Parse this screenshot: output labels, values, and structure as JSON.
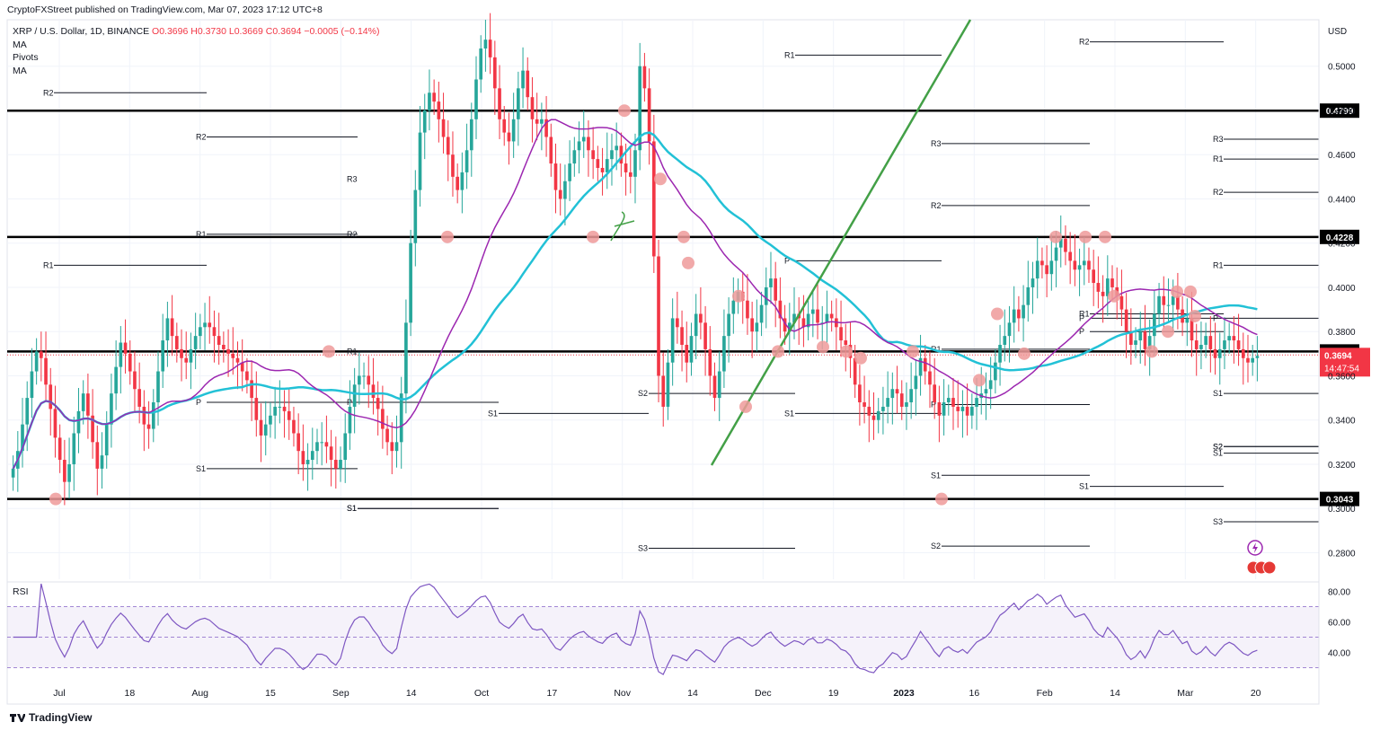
{
  "header": {
    "text": "CryptoFXStreet published on TradingView.com, Mar 07, 2023 17:12 UTC+8"
  },
  "legend": {
    "symbol": "XRP / U.S. Dollar, 1D, BINANCE",
    "open": "O0.3696",
    "high": "H0.3730",
    "low": "L0.3669",
    "close": "C0.3694",
    "change": "−0.0005 (−0.14%)",
    "indicators": [
      "MA",
      "Pivots",
      "MA"
    ]
  },
  "footer": {
    "brand": "TradingView"
  },
  "colors": {
    "up": "#26a69a",
    "down": "#f23645",
    "ma_fast": "#22c1d6",
    "ma_slow": "#9c27b0",
    "trend": "#43a047",
    "rsi": "#7e57c2",
    "markers": "#ef9a9a"
  },
  "chart_data": {
    "type": "candlestick",
    "title": "XRP / U.S. Dollar, 1D, BINANCE",
    "currency_label": "USD",
    "ylim": [
      0.268,
      0.521
    ],
    "y_ticks": [
      "0.5000",
      "0.4800",
      "0.4600",
      "0.4400",
      "0.4200",
      "0.4000",
      "0.3800",
      "0.3600",
      "0.3400",
      "0.3200",
      "0.3000",
      "0.2800"
    ],
    "x_ticks": [
      "Jul",
      "18",
      "Aug",
      "15",
      "Sep",
      "14",
      "Oct",
      "17",
      "Nov",
      "14",
      "Dec",
      "19",
      "2023",
      "16",
      "Feb",
      "14",
      "Mar",
      "20"
    ],
    "horizontal_levels": [
      0.4799,
      0.4228,
      0.371,
      0.3043
    ],
    "level_labels": [
      "0.4799",
      "0.4228",
      "0.3710",
      "0.3043"
    ],
    "last_price": "0.3694",
    "countdown": "14:47:54",
    "pivot_labels": [
      "R2",
      "R2",
      "R3",
      "R1",
      "R2",
      "R1",
      "R1",
      "P",
      "P",
      "S1",
      "S1",
      "S1",
      "S1",
      "R1",
      "P",
      "S1",
      "S2",
      "S3",
      "R1",
      "P",
      "S1",
      "R3",
      "R2",
      "R1",
      "P",
      "S1",
      "S2",
      "R2",
      "R1",
      "P",
      "S1",
      "S2",
      "R3",
      "R2",
      "R1",
      "P",
      "S1",
      "S2",
      "S3"
    ],
    "series": [
      {
        "name": "XRP close (approx.)",
        "values": [
          0.318,
          0.326,
          0.338,
          0.35,
          0.362,
          0.371,
          0.368,
          0.356,
          0.345,
          0.332,
          0.322,
          0.312,
          0.32,
          0.334,
          0.344,
          0.352,
          0.342,
          0.33,
          0.318,
          0.324,
          0.338,
          0.352,
          0.364,
          0.375,
          0.37,
          0.362,
          0.354,
          0.346,
          0.338,
          0.336,
          0.348,
          0.362,
          0.376,
          0.386,
          0.378,
          0.372,
          0.368,
          0.366,
          0.372,
          0.378,
          0.382,
          0.384,
          0.382,
          0.378,
          0.374,
          0.372,
          0.37,
          0.368,
          0.366,
          0.362,
          0.358,
          0.35,
          0.34,
          0.333,
          0.338,
          0.342,
          0.346,
          0.346,
          0.344,
          0.34,
          0.334,
          0.326,
          0.32,
          0.322,
          0.326,
          0.33,
          0.33,
          0.328,
          0.322,
          0.318,
          0.322,
          0.334,
          0.346,
          0.356,
          0.36,
          0.36,
          0.356,
          0.35,
          0.345,
          0.336,
          0.33,
          0.326,
          0.33,
          0.352,
          0.384,
          0.42,
          0.444,
          0.47,
          0.48,
          0.488,
          0.484,
          0.476,
          0.468,
          0.46,
          0.45,
          0.444,
          0.452,
          0.462,
          0.476,
          0.494,
          0.508,
          0.512,
          0.504,
          0.49,
          0.476,
          0.47,
          0.466,
          0.476,
          0.49,
          0.498,
          0.486,
          0.476,
          0.474,
          0.476,
          0.468,
          0.456,
          0.444,
          0.44,
          0.448,
          0.456,
          0.462,
          0.466,
          0.468,
          0.462,
          0.458,
          0.454,
          0.452,
          0.458,
          0.462,
          0.464,
          0.456,
          0.452,
          0.45,
          0.462,
          0.5,
          0.49,
          0.466,
          0.414,
          0.36,
          0.346,
          0.366,
          0.386,
          0.382,
          0.374,
          0.366,
          0.378,
          0.388,
          0.384,
          0.372,
          0.36,
          0.35,
          0.362,
          0.378,
          0.388,
          0.394,
          0.398,
          0.394,
          0.386,
          0.38,
          0.384,
          0.392,
          0.4,
          0.404,
          0.394,
          0.386,
          0.38,
          0.384,
          0.388,
          0.386,
          0.382,
          0.388,
          0.39,
          0.384,
          0.384,
          0.388,
          0.386,
          0.382,
          0.376,
          0.374,
          0.368,
          0.356,
          0.348,
          0.346,
          0.342,
          0.34,
          0.344,
          0.346,
          0.35,
          0.354,
          0.352,
          0.346,
          0.348,
          0.354,
          0.36,
          0.368,
          0.362,
          0.356,
          0.348,
          0.342,
          0.348,
          0.35,
          0.346,
          0.344,
          0.346,
          0.342,
          0.346,
          0.35,
          0.352,
          0.354,
          0.358,
          0.366,
          0.374,
          0.378,
          0.384,
          0.39,
          0.386,
          0.392,
          0.4,
          0.404,
          0.412,
          0.41,
          0.406,
          0.412,
          0.418,
          0.422,
          0.416,
          0.412,
          0.408,
          0.41,
          0.412,
          0.408,
          0.402,
          0.398,
          0.396,
          0.404,
          0.4,
          0.396,
          0.39,
          0.38,
          0.374,
          0.376,
          0.38,
          0.372,
          0.378,
          0.388,
          0.396,
          0.392,
          0.392,
          0.396,
          0.39,
          0.384,
          0.386,
          0.376,
          0.372,
          0.374,
          0.378,
          0.372,
          0.368,
          0.372,
          0.376,
          0.378,
          0.376,
          0.372,
          0.368,
          0.366,
          0.368,
          0.369
        ]
      }
    ],
    "indicators": {
      "rsi": {
        "label": "RSI",
        "ylim": [
          25,
          85
        ],
        "ticks": [
          "80.00",
          "60.00",
          "40.00"
        ],
        "bands": [
          70,
          50,
          30
        ]
      }
    }
  }
}
